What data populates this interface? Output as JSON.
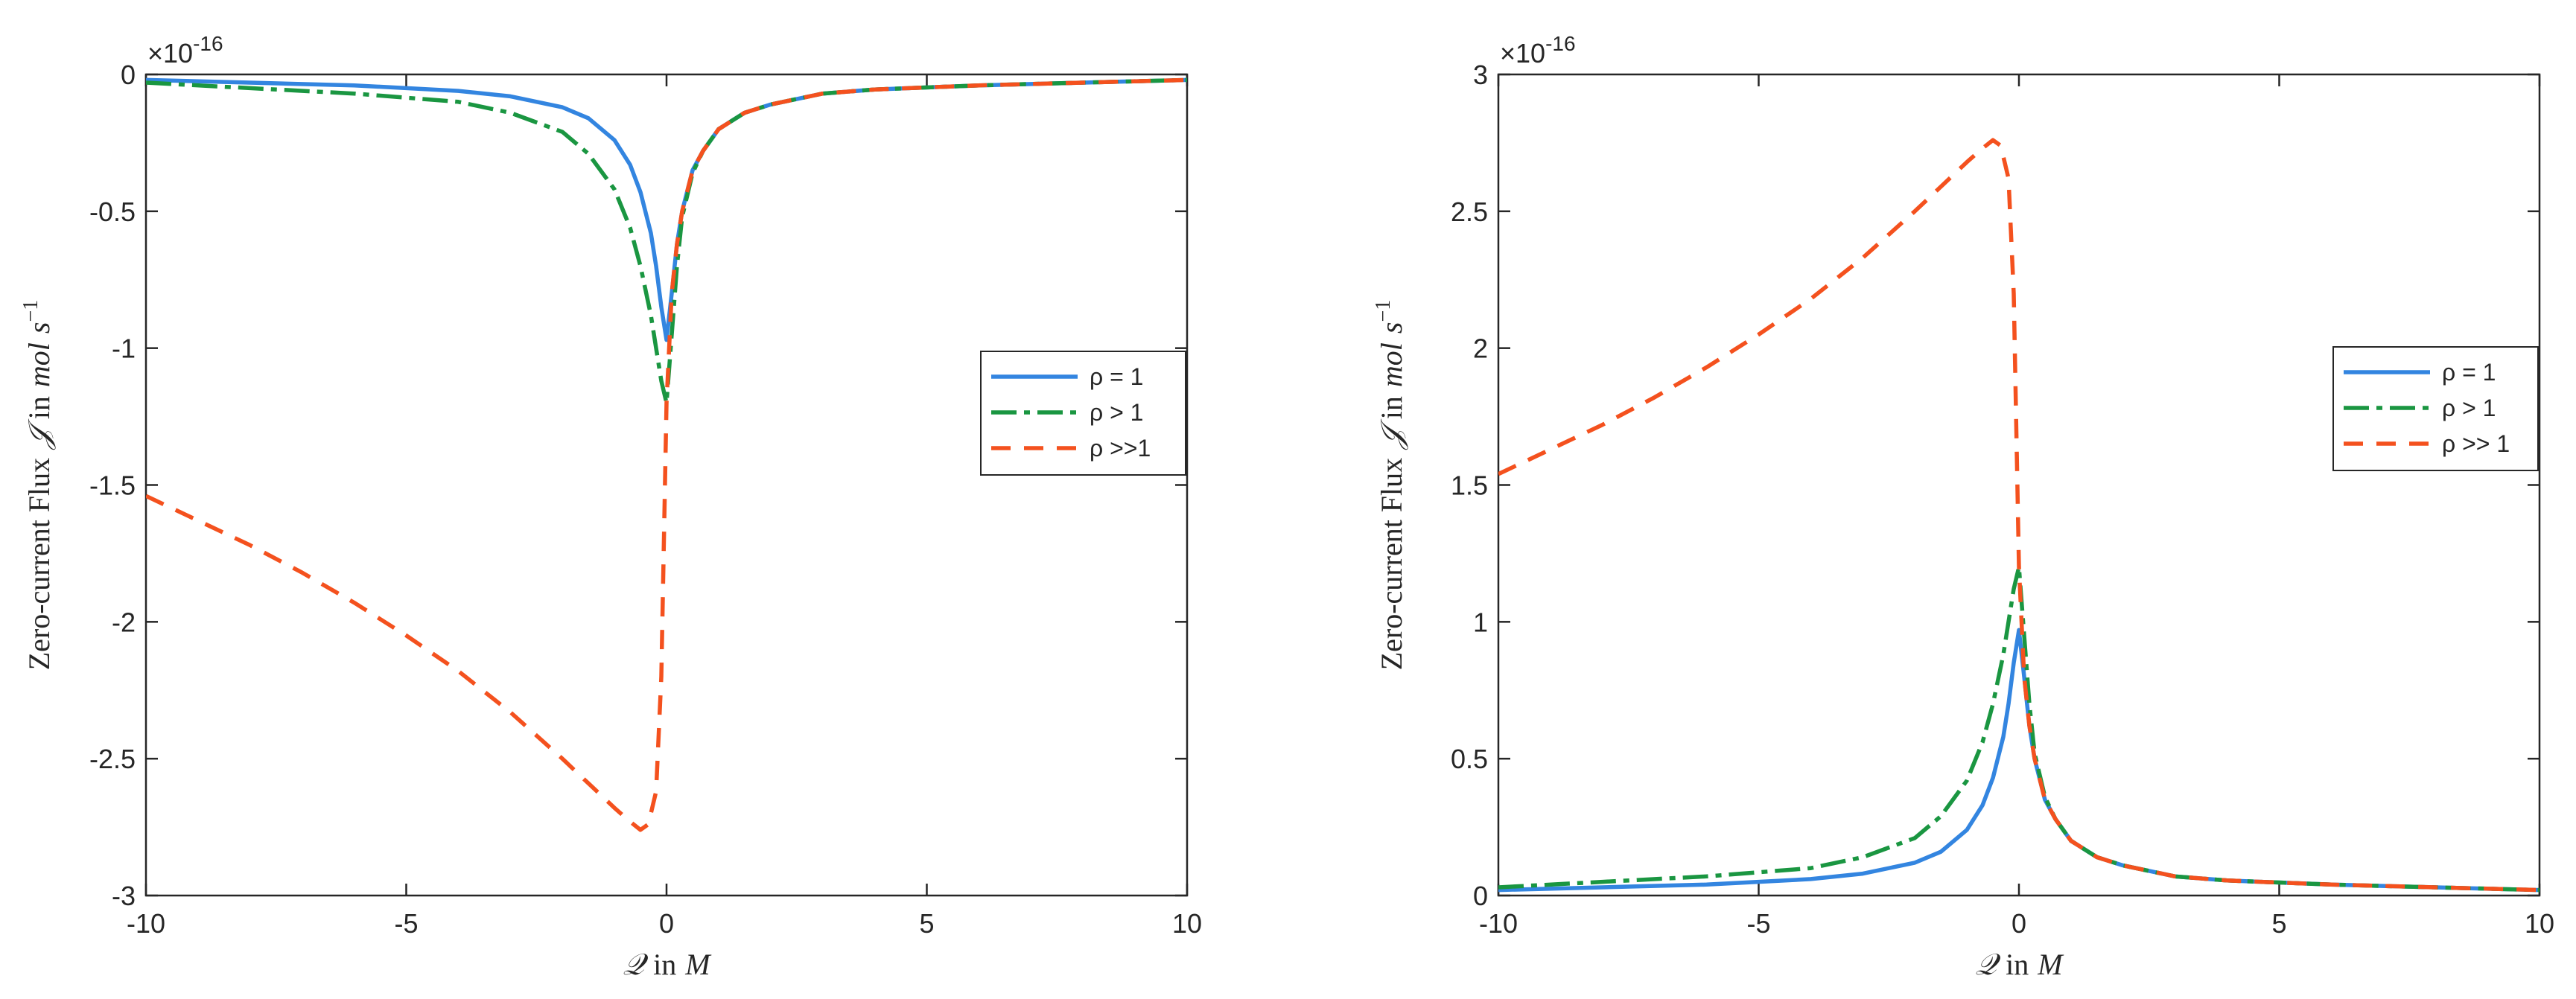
{
  "chart_data": [
    {
      "type": "line",
      "panel": "left",
      "title": "",
      "xlabel": {
        "symbol": "𝒬",
        "word": "in",
        "unit": "M"
      },
      "ylabel": {
        "prefix": "Zero-current Flux",
        "symbol": "𝒥",
        "word": "in",
        "unit_a": "mol",
        "unit_b": "s",
        "unit_exp": "−1"
      },
      "xlim": [
        -10,
        10
      ],
      "ylim": [
        -3,
        0
      ],
      "xticks": [
        "-10",
        "-5",
        "0",
        "5",
        "10"
      ],
      "yticks": [
        "-3",
        "-2.5",
        "-2",
        "-1.5",
        "-1",
        "-0.5",
        "0"
      ],
      "y_exponent": {
        "base": "×10",
        "power": "-16"
      },
      "legend": {
        "position": "middle-right"
      },
      "series": [
        {
          "name": "ρ = 1",
          "color": "#3385e0",
          "style": "solid",
          "x": [
            -10,
            -8,
            -6,
            -4,
            -3,
            -2,
            -1.5,
            -1,
            -0.7,
            -0.5,
            -0.3,
            -0.2,
            -0.1,
            0,
            0.1,
            0.2,
            0.3,
            0.5,
            0.7,
            1,
            1.5,
            2,
            3,
            4,
            6,
            8,
            10
          ],
          "y": [
            -0.02,
            -0.03,
            -0.04,
            -0.06,
            -0.08,
            -0.12,
            -0.16,
            -0.24,
            -0.33,
            -0.43,
            -0.58,
            -0.7,
            -0.85,
            -0.97,
            -0.8,
            -0.62,
            -0.5,
            -0.35,
            -0.28,
            -0.2,
            -0.14,
            -0.11,
            -0.07,
            -0.055,
            -0.04,
            -0.03,
            -0.02
          ]
        },
        {
          "name": "ρ > 1",
          "color": "#1a9641",
          "style": "dash-dot",
          "x": [
            -10,
            -8,
            -6,
            -4,
            -3,
            -2,
            -1.5,
            -1,
            -0.7,
            -0.5,
            -0.3,
            -0.2,
            -0.1,
            0,
            0.1,
            0.2,
            0.3,
            0.5,
            0.7,
            1,
            1.5,
            2,
            3,
            4,
            6,
            8,
            10
          ],
          "y": [
            -0.03,
            -0.05,
            -0.07,
            -0.1,
            -0.14,
            -0.21,
            -0.29,
            -0.42,
            -0.56,
            -0.7,
            -0.88,
            -1.0,
            -1.12,
            -1.2,
            -0.95,
            -0.7,
            -0.52,
            -0.36,
            -0.28,
            -0.2,
            -0.14,
            -0.11,
            -0.07,
            -0.055,
            -0.04,
            -0.03,
            -0.02
          ]
        },
        {
          "name": "ρ >>1",
          "color": "#f4511e",
          "style": "dashed",
          "x": [
            -10,
            -9,
            -8,
            -7,
            -6,
            -5,
            -4,
            -3,
            -2,
            -1.5,
            -1,
            -0.7,
            -0.5,
            -0.35,
            -0.2,
            -0.1,
            0,
            0.1,
            0.2,
            0.3,
            0.5,
            0.7,
            1,
            1.5,
            2,
            3,
            4,
            6,
            8,
            10
          ],
          "y": [
            -1.54,
            -1.63,
            -1.72,
            -1.82,
            -1.93,
            -2.05,
            -2.18,
            -2.33,
            -2.5,
            -2.59,
            -2.68,
            -2.73,
            -2.76,
            -2.74,
            -2.62,
            -2.2,
            -1.2,
            -0.8,
            -0.62,
            -0.5,
            -0.35,
            -0.28,
            -0.2,
            -0.14,
            -0.11,
            -0.07,
            -0.055,
            -0.04,
            -0.03,
            -0.02
          ]
        }
      ]
    },
    {
      "type": "line",
      "panel": "right",
      "title": "",
      "xlabel": {
        "symbol": "𝒬",
        "word": "in",
        "unit": "M"
      },
      "ylabel": {
        "prefix": "Zero-current Flux",
        "symbol": "𝒥",
        "word": "in",
        "unit_a": "mol",
        "unit_b": "s",
        "unit_exp": "−1"
      },
      "xlim": [
        -10,
        10
      ],
      "ylim": [
        0,
        3
      ],
      "xticks": [
        "-10",
        "-5",
        "0",
        "5",
        "10"
      ],
      "yticks": [
        "0",
        "0.5",
        "1",
        "1.5",
        "2",
        "2.5",
        "3"
      ],
      "y_exponent": {
        "base": "×10",
        "power": "-16"
      },
      "legend": {
        "position": "middle-right"
      },
      "series": [
        {
          "name": "ρ = 1",
          "color": "#3385e0",
          "style": "solid",
          "x": [
            -10,
            -8,
            -6,
            -4,
            -3,
            -2,
            -1.5,
            -1,
            -0.7,
            -0.5,
            -0.3,
            -0.2,
            -0.1,
            0,
            0.1,
            0.2,
            0.3,
            0.5,
            0.7,
            1,
            1.5,
            2,
            3,
            4,
            6,
            8,
            10
          ],
          "y": [
            0.02,
            0.03,
            0.04,
            0.06,
            0.08,
            0.12,
            0.16,
            0.24,
            0.33,
            0.43,
            0.58,
            0.7,
            0.85,
            0.97,
            0.8,
            0.62,
            0.5,
            0.35,
            0.28,
            0.2,
            0.14,
            0.11,
            0.07,
            0.055,
            0.04,
            0.03,
            0.02
          ]
        },
        {
          "name": "ρ > 1",
          "color": "#1a9641",
          "style": "dash-dot",
          "x": [
            -10,
            -8,
            -6,
            -4,
            -3,
            -2,
            -1.5,
            -1,
            -0.7,
            -0.5,
            -0.3,
            -0.2,
            -0.1,
            0,
            0.1,
            0.2,
            0.3,
            0.5,
            0.7,
            1,
            1.5,
            2,
            3,
            4,
            6,
            8,
            10
          ],
          "y": [
            0.03,
            0.05,
            0.07,
            0.1,
            0.14,
            0.21,
            0.29,
            0.42,
            0.56,
            0.7,
            0.88,
            1.0,
            1.12,
            1.2,
            0.95,
            0.7,
            0.52,
            0.36,
            0.28,
            0.2,
            0.14,
            0.11,
            0.07,
            0.055,
            0.04,
            0.03,
            0.02
          ]
        },
        {
          "name": "ρ >> 1",
          "color": "#f4511e",
          "style": "dashed",
          "x": [
            -10,
            -9,
            -8,
            -7,
            -6,
            -5,
            -4,
            -3,
            -2,
            -1.5,
            -1,
            -0.7,
            -0.5,
            -0.35,
            -0.2,
            -0.1,
            0,
            0.1,
            0.2,
            0.3,
            0.5,
            0.7,
            1,
            1.5,
            2,
            3,
            4,
            6,
            8,
            10
          ],
          "y": [
            1.54,
            1.63,
            1.72,
            1.82,
            1.93,
            2.05,
            2.18,
            2.33,
            2.5,
            2.59,
            2.68,
            2.73,
            2.76,
            2.74,
            2.62,
            2.2,
            1.2,
            0.8,
            0.62,
            0.5,
            0.35,
            0.28,
            0.2,
            0.14,
            0.11,
            0.07,
            0.055,
            0.04,
            0.03,
            0.02
          ]
        }
      ]
    }
  ]
}
